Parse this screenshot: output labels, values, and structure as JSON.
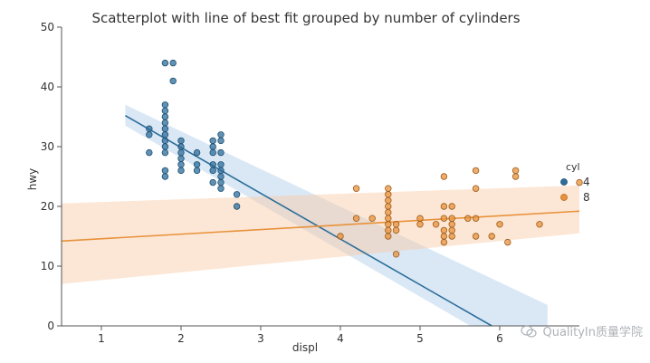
{
  "chart_data": {
    "type": "scatter",
    "title": "Scatterplot with line of best fit grouped by number of cylinders",
    "xlabel": "displ",
    "ylabel": "hwy",
    "xlim": [
      0.5,
      7.0
    ],
    "ylim": [
      0,
      50
    ],
    "xticks": [
      1,
      2,
      3,
      4,
      5,
      6
    ],
    "yticks": [
      0,
      10,
      20,
      30,
      40,
      50
    ],
    "grid": false,
    "legend": {
      "title": "cyl",
      "placement": "right"
    },
    "series": [
      {
        "name": "4",
        "color": "#2c6e9b",
        "points": [
          [
            1.8,
            44
          ],
          [
            1.9,
            44
          ],
          [
            1.9,
            41
          ],
          [
            1.8,
            37
          ],
          [
            1.8,
            36
          ],
          [
            1.8,
            35
          ],
          [
            1.8,
            34
          ],
          [
            1.8,
            33
          ],
          [
            1.6,
            33
          ],
          [
            1.6,
            32
          ],
          [
            1.8,
            32
          ],
          [
            1.8,
            31
          ],
          [
            1.8,
            30
          ],
          [
            1.8,
            29
          ],
          [
            1.8,
            26
          ],
          [
            1.8,
            25
          ],
          [
            1.6,
            29
          ],
          [
            2.0,
            31
          ],
          [
            2.0,
            30
          ],
          [
            2.0,
            29
          ],
          [
            2.0,
            28
          ],
          [
            2.0,
            27
          ],
          [
            2.0,
            26
          ],
          [
            2.2,
            29
          ],
          [
            2.2,
            27
          ],
          [
            2.2,
            26
          ],
          [
            2.4,
            31
          ],
          [
            2.4,
            30
          ],
          [
            2.4,
            29
          ],
          [
            2.4,
            27
          ],
          [
            2.4,
            26
          ],
          [
            2.4,
            24
          ],
          [
            2.5,
            32
          ],
          [
            2.5,
            31
          ],
          [
            2.5,
            29
          ],
          [
            2.5,
            27
          ],
          [
            2.5,
            26
          ],
          [
            2.5,
            25
          ],
          [
            2.5,
            24
          ],
          [
            2.5,
            23
          ],
          [
            2.7,
            22
          ],
          [
            2.7,
            20
          ]
        ],
        "fit": {
          "x1": 1.3,
          "y1": 35.2,
          "x2": 5.9,
          "y2": 0
        },
        "ci_band": {
          "x1": 1.3,
          "y1_low": 33.5,
          "y1_high": 37,
          "x2": 6.6,
          "y2_low": -7.5,
          "y2_high": 3.5
        }
      },
      {
        "name": "8",
        "color": "#e8913a",
        "points": [
          [
            4.2,
            23
          ],
          [
            4.2,
            18
          ],
          [
            4.0,
            15
          ],
          [
            4.4,
            18
          ],
          [
            4.6,
            23
          ],
          [
            4.6,
            22
          ],
          [
            4.6,
            21
          ],
          [
            4.6,
            20
          ],
          [
            4.6,
            19
          ],
          [
            4.6,
            18
          ],
          [
            4.6,
            17
          ],
          [
            4.6,
            16
          ],
          [
            4.6,
            15
          ],
          [
            4.7,
            17
          ],
          [
            4.7,
            16
          ],
          [
            4.7,
            12
          ],
          [
            5.0,
            17
          ],
          [
            5.2,
            17
          ],
          [
            5.3,
            20
          ],
          [
            5.3,
            18
          ],
          [
            5.3,
            16
          ],
          [
            5.3,
            15
          ],
          [
            5.3,
            14
          ],
          [
            5.4,
            20
          ],
          [
            5.4,
            18
          ],
          [
            5.4,
            17
          ],
          [
            5.4,
            16
          ],
          [
            5.4,
            15
          ],
          [
            5.3,
            25
          ],
          [
            5.7,
            26
          ],
          [
            5.7,
            23
          ],
          [
            5.7,
            18
          ],
          [
            5.7,
            15
          ],
          [
            5.9,
            15
          ],
          [
            6.0,
            17
          ],
          [
            6.1,
            14
          ],
          [
            6.2,
            26
          ],
          [
            6.2,
            25
          ],
          [
            6.5,
            17
          ],
          [
            7.0,
            24
          ],
          [
            5.6,
            18
          ],
          [
            5.0,
            18
          ]
        ],
        "fit": {
          "x1": 0.5,
          "y1": 14.2,
          "x2": 7.0,
          "y2": 19.2
        },
        "ci_band": {
          "x1": 0.5,
          "y1_low": 7.0,
          "y1_high": 20.5,
          "x2": 7.0,
          "y2_low": 15.5,
          "y2_high": 23.5
        }
      }
    ]
  },
  "watermark": {
    "text": "QualityIn质量学院"
  }
}
